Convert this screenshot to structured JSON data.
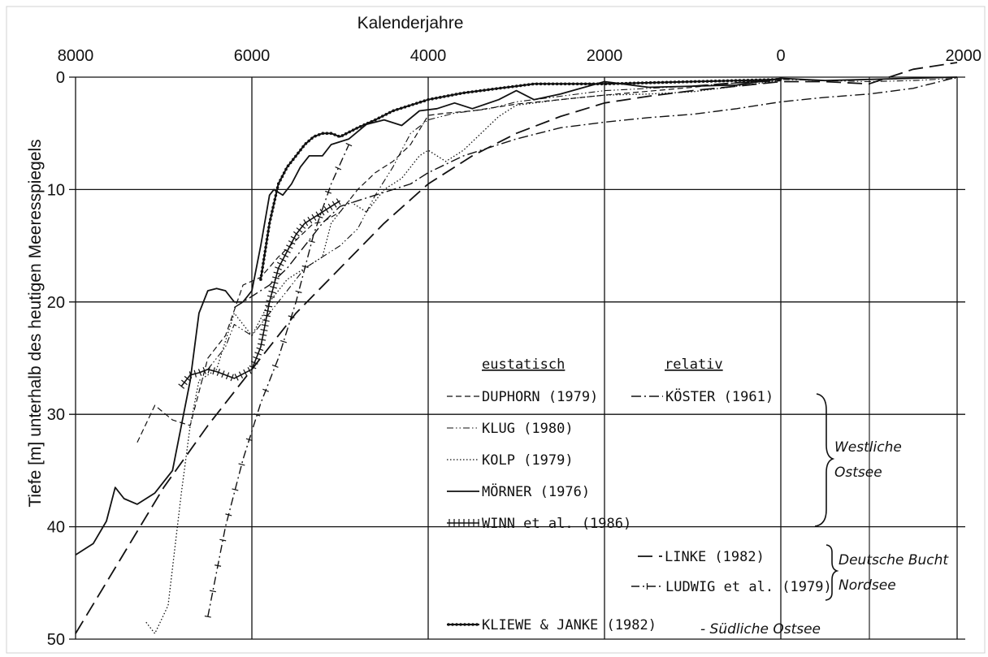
{
  "chart_data": {
    "type": "line",
    "title": "",
    "xlabel": "Kalenderjahre",
    "ylabel": "Tiefe [m] unterhalb des heutigen Meeresspiegels",
    "x_ticks": [
      "8000",
      "6000",
      "4000",
      "2000",
      "0",
      "2000"
    ],
    "x_tick_values": [
      -8000,
      -6000,
      -4000,
      -2000,
      0,
      2000
    ],
    "y_ticks": [
      "0",
      "10",
      "20",
      "30",
      "40",
      "50"
    ],
    "xlim": [
      -8000,
      2000
    ],
    "ylim": [
      0,
      50
    ],
    "grid": true,
    "legend": {
      "placement": "bottom-right",
      "header_eustatic": "eustatisch",
      "header_relative": "relativ",
      "groups": [
        {
          "label": "Westliche Ostsee",
          "line1": "Westliche",
          "line2": "Ostsee"
        },
        {
          "label": "Deutsche Bucht Nordsee",
          "line1": "Deutsche Bucht",
          "line2": "Nordsee"
        },
        {
          "label": "Südliche Ostsee",
          "line1": "- Südliche Ostsee",
          "line2": ""
        }
      ]
    },
    "series": [
      {
        "name": "DUPHORN (1979)",
        "style": "dashed-short",
        "x": [
          -7300,
          -7100,
          -6900,
          -6700,
          -6500,
          -6300,
          -6100,
          -5900,
          -5700,
          -5500,
          -5300,
          -5200,
          -5000,
          -4800,
          -4600,
          -4400,
          -4200,
          -4000,
          -3800,
          -3500,
          -3000,
          -2000,
          -1000,
          0
        ],
        "y": [
          32.5,
          29.2,
          30.5,
          31.0,
          25.0,
          23.0,
          18.5,
          17.8,
          16.0,
          14.5,
          13.0,
          12.9,
          12.0,
          10.0,
          8.5,
          7.5,
          6.0,
          3.4,
          3.2,
          3.0,
          2.4,
          1.6,
          0.9,
          0.1
        ]
      },
      {
        "name": "KLUG (1980)",
        "style": "dash-dot-dot",
        "x": [
          -6500,
          -6300,
          -6200,
          -6000,
          -5800,
          -5600,
          -5400,
          -5200,
          -5000,
          -4800,
          -4600,
          -4400,
          -4200,
          -4000,
          -3700,
          -3300,
          -3000,
          -2500,
          -2000,
          -1500,
          -1000,
          -500,
          0,
          500,
          1000,
          1500,
          2000
        ],
        "y": [
          26.0,
          24.0,
          22.0,
          23.0,
          21.0,
          19.0,
          17.0,
          16.0,
          15.0,
          13.5,
          10.5,
          8.0,
          5.0,
          3.8,
          3.2,
          2.8,
          2.2,
          1.7,
          1.2,
          1.0,
          0.8,
          0.5,
          0.2,
          0.3,
          0.4,
          0.3,
          0.1
        ]
      },
      {
        "name": "KOLP (1979)",
        "style": "dotted",
        "x": [
          -7200,
          -7100,
          -6950,
          -6800,
          -6700,
          -6600,
          -6400,
          -6200,
          -6000,
          -5800,
          -5600,
          -5400,
          -5200,
          -5100,
          -4900,
          -4700,
          -4500,
          -4300,
          -4100,
          -4000,
          -3800,
          -3600,
          -3200,
          -3000,
          -2500,
          -2000,
          -1500,
          -1000,
          -500,
          0
        ],
        "y": [
          48.5,
          49.5,
          47.0,
          37.0,
          31.0,
          27.0,
          26.0,
          21.0,
          23.0,
          20.0,
          18.0,
          17.0,
          16.0,
          13.0,
          11.0,
          12.0,
          10.0,
          9.0,
          7.0,
          6.5,
          7.5,
          6.5,
          3.5,
          2.5,
          2.0,
          1.6,
          1.5,
          1.3,
          0.8,
          0.3
        ]
      },
      {
        "name": "MÖRNER (1976)",
        "style": "solid",
        "x": [
          -8000,
          -7800,
          -7650,
          -7550,
          -7450,
          -7300,
          -7100,
          -6900,
          -6700,
          -6600,
          -6500,
          -6400,
          -6300,
          -6200,
          -6100,
          -6000,
          -5900,
          -5800,
          -5750,
          -5650,
          -5550,
          -5450,
          -5350,
          -5200,
          -5100,
          -4900,
          -4700,
          -4500,
          -4300,
          -4100,
          -3900,
          -3700,
          -3500,
          -3200,
          -3000,
          -2800,
          -2500,
          -2000,
          -1500,
          -1000,
          -500,
          0,
          500,
          1000,
          1500,
          2000
        ],
        "y": [
          42.5,
          41.5,
          39.5,
          36.5,
          37.5,
          38.0,
          37.0,
          35.0,
          27.0,
          21.0,
          19.0,
          18.8,
          19.0,
          20.0,
          20.0,
          19.0,
          15.0,
          10.5,
          10.0,
          10.5,
          9.5,
          8.0,
          7.0,
          7.0,
          6.0,
          5.5,
          4.2,
          3.8,
          4.3,
          3.0,
          2.8,
          2.3,
          2.8,
          2.0,
          1.2,
          2.0,
          1.5,
          0.4,
          0.9,
          0.8,
          0.7,
          0.1,
          0.3,
          0.2,
          0.1,
          0.0
        ]
      },
      {
        "name": "WINN et al. (1986)",
        "style": "cross-ticks",
        "x": [
          -6800,
          -6700,
          -6600,
          -6500,
          -6400,
          -6200,
          -6000,
          -5900,
          -5800,
          -5700,
          -5600,
          -5500,
          -5400,
          -5300,
          -5200,
          -5000
        ],
        "y": [
          27.5,
          26.5,
          26.3,
          26.0,
          26.2,
          26.8,
          26.0,
          24.0,
          20.0,
          17.0,
          15.5,
          14.0,
          13.0,
          12.5,
          12.0,
          11.0
        ]
      },
      {
        "name": "KÖSTER (1961)",
        "style": "dash-dot",
        "x": [
          -6200,
          -6000,
          -5800,
          -5600,
          -5400,
          -5200,
          -5000,
          -4800,
          -4600,
          -4400,
          -4200,
          -4000,
          -3600,
          -3000,
          -2500,
          -2000,
          -1500,
          -1000,
          -500,
          0,
          500,
          1000,
          1500,
          2000
        ],
        "y": [
          20.5,
          19.5,
          18.5,
          17.0,
          15.0,
          13.0,
          11.5,
          11.0,
          10.5,
          10.0,
          9.5,
          8.5,
          7.0,
          5.5,
          4.5,
          4.0,
          3.6,
          3.3,
          2.8,
          2.2,
          1.8,
          1.5,
          1.0,
          0.0
        ]
      },
      {
        "name": "LINKE (1982)",
        "style": "long-dash",
        "x": [
          -8000,
          -7500,
          -7000,
          -6500,
          -6000,
          -5500,
          -5000,
          -4500,
          -4000,
          -3500,
          -3000,
          -2500,
          -2000,
          -1500,
          -1000,
          -500,
          0,
          500,
          1000,
          1500,
          2000
        ],
        "y": [
          49.5,
          43.0,
          36.5,
          31.0,
          26.0,
          21.0,
          17.0,
          13.0,
          9.5,
          7.0,
          5.0,
          3.5,
          2.3,
          1.7,
          1.2,
          0.8,
          0.4,
          0.4,
          0.6,
          -0.7,
          -1.3
        ]
      },
      {
        "name": "LUDWIG et al. (1979)",
        "style": "dash-plus",
        "x": [
          -6500,
          -6300,
          -6100,
          -5900,
          -5700,
          -5500,
          -5300,
          -5100,
          -4900
        ],
        "y": [
          48.0,
          40.0,
          34.0,
          29.0,
          25.0,
          20.0,
          14.0,
          9.5,
          6.0
        ]
      },
      {
        "name": "KLIEWE & JANKE (1982)",
        "style": "beaded",
        "x": [
          -5900,
          -5800,
          -5700,
          -5600,
          -5500,
          -5400,
          -5300,
          -5200,
          -5100,
          -5000,
          -4800,
          -4600,
          -4400,
          -4200,
          -4000,
          -3800,
          -3600,
          -3400,
          -3200,
          -3000,
          -2800,
          -2500,
          -2000,
          -1500,
          -1000,
          -500,
          0
        ],
        "y": [
          18.0,
          13.0,
          9.5,
          8.0,
          7.0,
          6.0,
          5.3,
          5.0,
          5.0,
          5.3,
          4.5,
          3.8,
          3.0,
          2.5,
          2.0,
          1.7,
          1.4,
          1.2,
          1.0,
          0.8,
          0.6,
          0.6,
          0.6,
          0.5,
          0.4,
          0.3,
          0.2
        ]
      },
      {
        "name": "",
        "style": "long-dash",
        "x": [
          -1000,
          -500,
          0
        ],
        "y": [
          0.8,
          0.5,
          0.3
        ]
      }
    ]
  }
}
